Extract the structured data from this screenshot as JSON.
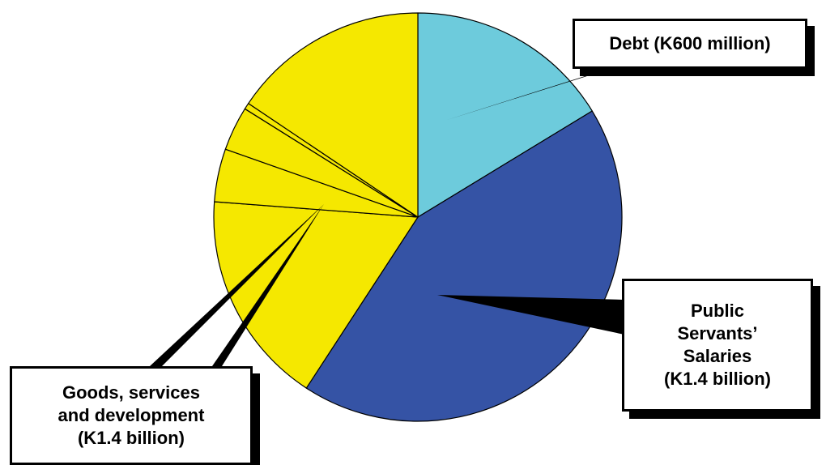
{
  "chart_data": {
    "type": "pie",
    "title": "",
    "start": "top",
    "direction": "clockwise",
    "slices": [
      {
        "category": "Debt",
        "value": 0.163,
        "color": "#6dcbdc"
      },
      {
        "category": "Public Servants' Salaries",
        "value": 0.429,
        "color": "#3553a5"
      },
      {
        "category": "Goods, services and development",
        "value": 0.17,
        "color": "#f5e800"
      },
      {
        "category": "Goods, services and development",
        "value": 0.042,
        "color": "#f5e800"
      },
      {
        "category": "Goods, services and development",
        "value": 0.035,
        "color": "#f5e800"
      },
      {
        "category": "Goods, services and development",
        "value": 0.005,
        "color": "#f5e800"
      },
      {
        "category": "Goods, services and development",
        "value": 0.156,
        "color": "#f5e800"
      }
    ],
    "callouts": [
      {
        "name": "debt",
        "lines": [
          "Debt (K600 million)"
        ]
      },
      {
        "name": "salaries",
        "lines": [
          "Public",
          "Servants’",
          "Salaries",
          "(K1.4 billion)"
        ]
      },
      {
        "name": "goods",
        "lines": [
          "Goods, services",
          "and development",
          "(K1.4 billion)"
        ]
      }
    ]
  }
}
